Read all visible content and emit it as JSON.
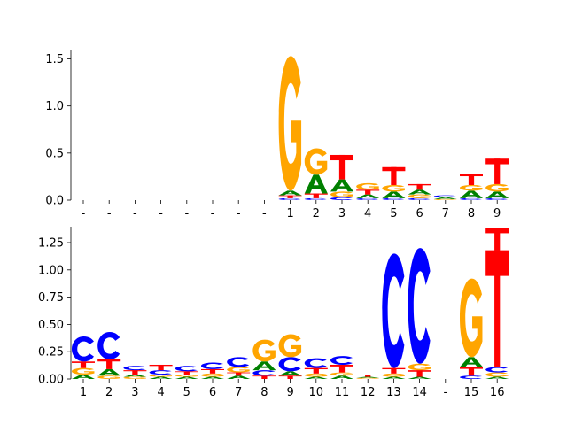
{
  "colors": {
    "A": "#008000",
    "C": "#0000ff",
    "G": "#ffa500",
    "T": "#ff0000"
  },
  "chart_data": [
    {
      "type": "sequence-logo",
      "ylim": [
        0,
        1.58
      ],
      "yticks": [
        "0.0",
        "0.5",
        "1.0",
        "1.5"
      ],
      "ytick_values": [
        0,
        0.5,
        1.0,
        1.5
      ],
      "xtick_labels": [
        "-",
        "-",
        "-",
        "-",
        "-",
        "-",
        "-",
        "-",
        "1",
        "2",
        "3",
        "4",
        "5",
        "6",
        "7",
        "8",
        "9"
      ],
      "columns": [
        [],
        [],
        [],
        [],
        [],
        [],
        [],
        [],
        [
          {
            "b": "C",
            "h": 0.02
          },
          {
            "b": "T",
            "h": 0.03
          },
          {
            "b": "A",
            "h": 0.05
          },
          {
            "b": "G",
            "h": 1.43
          }
        ],
        [
          {
            "b": "C",
            "h": 0.02
          },
          {
            "b": "T",
            "h": 0.05
          },
          {
            "b": "A",
            "h": 0.2
          },
          {
            "b": "G",
            "h": 0.28
          }
        ],
        [
          {
            "b": "C",
            "h": 0.03
          },
          {
            "b": "G",
            "h": 0.06
          },
          {
            "b": "A",
            "h": 0.13
          },
          {
            "b": "T",
            "h": 0.26
          }
        ],
        [
          {
            "b": "C",
            "h": 0.02
          },
          {
            "b": "A",
            "h": 0.04
          },
          {
            "b": "T",
            "h": 0.05
          },
          {
            "b": "G",
            "h": 0.07
          }
        ],
        [
          {
            "b": "C",
            "h": 0.02
          },
          {
            "b": "A",
            "h": 0.07
          },
          {
            "b": "G",
            "h": 0.07
          },
          {
            "b": "T",
            "h": 0.19
          }
        ],
        [
          {
            "b": "C",
            "h": 0.02
          },
          {
            "b": "G",
            "h": 0.04
          },
          {
            "b": "A",
            "h": 0.05
          },
          {
            "b": "T",
            "h": 0.06
          }
        ],
        [
          {
            "b": "G",
            "h": 0.01
          },
          {
            "b": "A",
            "h": 0.02
          },
          {
            "b": "C",
            "h": 0.02
          }
        ],
        [
          {
            "b": "C",
            "h": 0.02
          },
          {
            "b": "A",
            "h": 0.08
          },
          {
            "b": "G",
            "h": 0.06
          },
          {
            "b": "T",
            "h": 0.12
          }
        ],
        [
          {
            "b": "C",
            "h": 0.02
          },
          {
            "b": "A",
            "h": 0.07
          },
          {
            "b": "G",
            "h": 0.08
          },
          {
            "b": "T",
            "h": 0.27
          }
        ]
      ]
    },
    {
      "type": "sequence-logo",
      "ylim": [
        0,
        1.38
      ],
      "yticks": [
        "0.00",
        "0.25",
        "0.50",
        "0.75",
        "1.00",
        "1.25"
      ],
      "ytick_values": [
        0,
        0.25,
        0.5,
        0.75,
        1.0,
        1.25
      ],
      "xtick_labels": [
        "1",
        "2",
        "3",
        "4",
        "5",
        "6",
        "7",
        "8",
        "9",
        "10",
        "11",
        "12",
        "13",
        "14",
        "-",
        "15",
        "16"
      ],
      "columns": [
        [
          {
            "b": "A",
            "h": 0.04
          },
          {
            "b": "G",
            "h": 0.06
          },
          {
            "b": "T",
            "h": 0.06
          },
          {
            "b": "C",
            "h": 0.23
          }
        ],
        [
          {
            "b": "G",
            "h": 0.03
          },
          {
            "b": "A",
            "h": 0.06
          },
          {
            "b": "T",
            "h": 0.09
          },
          {
            "b": "C",
            "h": 0.25
          }
        ],
        [
          {
            "b": "G",
            "h": 0.02
          },
          {
            "b": "A",
            "h": 0.02
          },
          {
            "b": "T",
            "h": 0.04
          },
          {
            "b": "C",
            "h": 0.04
          }
        ],
        [
          {
            "b": "A",
            "h": 0.02
          },
          {
            "b": "G",
            "h": 0.02
          },
          {
            "b": "C",
            "h": 0.04
          },
          {
            "b": "T",
            "h": 0.05
          }
        ],
        [
          {
            "b": "A",
            "h": 0.02
          },
          {
            "b": "G",
            "h": 0.02
          },
          {
            "b": "T",
            "h": 0.03
          },
          {
            "b": "C",
            "h": 0.05
          }
        ],
        [
          {
            "b": "A",
            "h": 0.02
          },
          {
            "b": "G",
            "h": 0.03
          },
          {
            "b": "T",
            "h": 0.04
          },
          {
            "b": "C",
            "h": 0.06
          }
        ],
        [
          {
            "b": "A",
            "h": 0.03
          },
          {
            "b": "T",
            "h": 0.03
          },
          {
            "b": "G",
            "h": 0.05
          },
          {
            "b": "C",
            "h": 0.09
          }
        ],
        [
          {
            "b": "T",
            "h": 0.03
          },
          {
            "b": "C",
            "h": 0.05
          },
          {
            "b": "A",
            "h": 0.08
          },
          {
            "b": "G",
            "h": 0.2
          }
        ],
        [
          {
            "b": "T",
            "h": 0.03
          },
          {
            "b": "A",
            "h": 0.04
          },
          {
            "b": "C",
            "h": 0.13
          },
          {
            "b": "G",
            "h": 0.21
          }
        ],
        [
          {
            "b": "A",
            "h": 0.02
          },
          {
            "b": "G",
            "h": 0.03
          },
          {
            "b": "T",
            "h": 0.05
          },
          {
            "b": "C",
            "h": 0.09
          }
        ],
        [
          {
            "b": "A",
            "h": 0.03
          },
          {
            "b": "G",
            "h": 0.03
          },
          {
            "b": "T",
            "h": 0.07
          },
          {
            "b": "C",
            "h": 0.08
          }
        ],
        [
          {
            "b": "G",
            "h": 0.01
          },
          {
            "b": "A",
            "h": 0.01
          },
          {
            "b": "T",
            "h": 0.02
          }
        ],
        [
          {
            "b": "A",
            "h": 0.02
          },
          {
            "b": "G",
            "h": 0.03
          },
          {
            "b": "T",
            "h": 0.05
          },
          {
            "b": "C",
            "h": 1.05
          }
        ],
        [
          {
            "b": "A",
            "h": 0.02
          },
          {
            "b": "T",
            "h": 0.06
          },
          {
            "b": "G",
            "h": 0.06
          },
          {
            "b": "C",
            "h": 1.06
          }
        ],
        [],
        [
          {
            "b": "C",
            "h": 0.03
          },
          {
            "b": "T",
            "h": 0.08
          },
          {
            "b": "A",
            "h": 0.09
          },
          {
            "b": "G",
            "h": 0.72
          }
        ],
        [
          {
            "b": "A",
            "h": 0.02
          },
          {
            "b": "G",
            "h": 0.04
          },
          {
            "b": "C",
            "h": 0.05
          },
          {
            "b": "T",
            "h": 1.07
          },
          {
            "b": "T",
            "h": 0.2
          }
        ]
      ]
    }
  ]
}
